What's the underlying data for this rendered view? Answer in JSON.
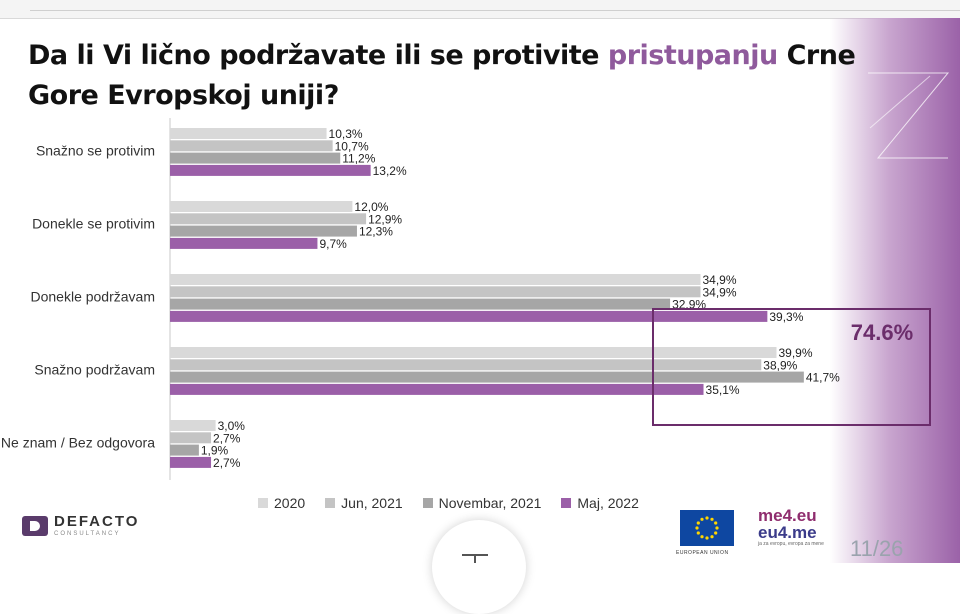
{
  "title": {
    "part1": "Da li Vi lično podržavate ili se protivite ",
    "highlight": "pristupanju",
    "part2": " Crne Gore Evropskoj uniji?"
  },
  "chart_data": {
    "type": "bar",
    "orientation": "horizontal",
    "categories": [
      "Snažno se protivim",
      "Donekle se protivim",
      "Donekle podržavam",
      "Snažno podržavam",
      "Ne znam / Bez odgovora"
    ],
    "series": [
      {
        "name": "2020",
        "color": "#d9d9d9",
        "values": [
          10.3,
          12.0,
          34.9,
          39.9,
          3.0
        ],
        "labels": [
          "10,3%",
          "12,0%",
          "34,9%",
          "39,9%",
          "3,0%"
        ]
      },
      {
        "name": "Jun, 2021",
        "color": "#c4c4c4",
        "values": [
          10.7,
          12.9,
          34.9,
          38.9,
          2.7
        ],
        "labels": [
          "10,7%",
          "12,9%",
          "34,9%",
          "38,9%",
          "2,7%"
        ]
      },
      {
        "name": "Novembar, 2021",
        "color": "#a6a6a6",
        "values": [
          11.2,
          12.3,
          32.9,
          41.7,
          1.9
        ],
        "labels": [
          "11,2%",
          "12,3%",
          "32,9%",
          "41,7%",
          "1,9%"
        ]
      },
      {
        "name": "Maj, 2022",
        "color": "#9b5fa8",
        "values": [
          13.2,
          9.7,
          39.3,
          35.1,
          2.7
        ],
        "labels": [
          "13,2%",
          "9,7%",
          "39,3%",
          "35,1%",
          "2,7%"
        ]
      }
    ],
    "xlim": [
      0,
      50
    ],
    "legend_position": "bottom",
    "annotation": {
      "text": "74.6%",
      "color": "#6b2d6b"
    }
  },
  "colors": {
    "accent": "#8f5a9c",
    "box": "#6b2d6b"
  },
  "logo": {
    "name": "DEFACTO",
    "sub": "CONSULTANCY"
  },
  "eu": {
    "caption": "EUROPEAN UNION"
  },
  "me4eu": {
    "line1": "me4.eu",
    "line2": "eu4.me",
    "sub": "ja za evropu, evropa za mene"
  },
  "page": {
    "number": "11/26"
  }
}
